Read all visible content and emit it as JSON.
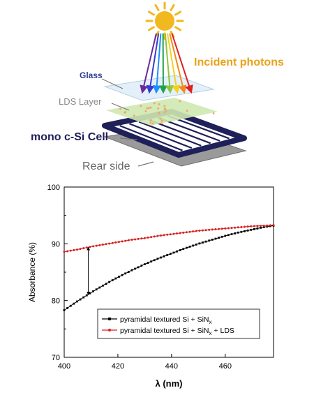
{
  "diagram": {
    "labels": {
      "glass": "Glass",
      "lds_layer": "LDS Layer",
      "cell": "mono c-Si Cell",
      "rear": "Rear side",
      "photons": "Incident photons"
    },
    "colors": {
      "sun": "#f2b81f",
      "photons_text": "#e8a21a",
      "glass_text": "#2b3d8f",
      "cell_text": "#1f1f5a",
      "lds_fill": "#cfe8b0",
      "glass_fill": "#dfeef8",
      "cell_frame": "#1f1f5a",
      "rear_fill": "#9a9a9a"
    },
    "ray_colors": [
      "#6a2a9a",
      "#3a3ad0",
      "#1e90ff",
      "#20a050",
      "#8cc63f",
      "#f2d21f",
      "#f28a1f",
      "#e02020"
    ]
  },
  "chart_data": {
    "type": "scatter",
    "xlabel": "λ (nm)",
    "ylabel": "Absorbance (%)",
    "xlim": [
      400,
      478
    ],
    "ylim": [
      70,
      100
    ],
    "x_ticks": [
      400,
      420,
      440,
      460
    ],
    "y_ticks": [
      70,
      80,
      90,
      100
    ],
    "grid": false,
    "legend_position": "lower-right",
    "series": [
      {
        "name": "pyramidal textured Si + SiN",
        "subscript": "x",
        "suffix": "",
        "color": "#000000",
        "marker": "square",
        "x": [
          400,
          405,
          410,
          415,
          420,
          425,
          430,
          435,
          440,
          445,
          450,
          455,
          460,
          465,
          470,
          475,
          478
        ],
        "y": [
          78.3,
          79.9,
          81.4,
          82.8,
          84.1,
          85.3,
          86.4,
          87.4,
          88.3,
          89.2,
          90.0,
          90.7,
          91.4,
          92.0,
          92.5,
          93.0,
          93.2
        ]
      },
      {
        "name": "pyramidal textured Si + SiN",
        "subscript": "x",
        "suffix": " + LDS",
        "color": "#d62020",
        "marker": "circle",
        "x": [
          400,
          405,
          410,
          415,
          420,
          425,
          430,
          435,
          440,
          445,
          450,
          455,
          460,
          465,
          470,
          475,
          478
        ],
        "y": [
          88.6,
          89.0,
          89.5,
          89.9,
          90.3,
          90.7,
          91.0,
          91.4,
          91.7,
          92.0,
          92.3,
          92.5,
          92.7,
          92.9,
          93.1,
          93.2,
          93.3
        ]
      }
    ],
    "annotation": {
      "type": "double-arrow",
      "x": 409,
      "y_from": 81.0,
      "y_to": 89.4
    }
  }
}
